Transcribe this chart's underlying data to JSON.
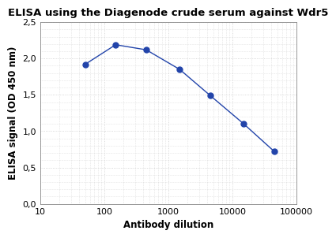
{
  "title": "ELISA using the Diagenode crude serum against Wdr5",
  "xlabel": "Antibody dilution",
  "ylabel": "ELISA signal (OD 450 nm)",
  "x": [
    50,
    150,
    450,
    1500,
    4500,
    15000,
    45000
  ],
  "y": [
    1.92,
    2.19,
    2.12,
    1.85,
    1.49,
    1.1,
    0.72
  ],
  "xlim": [
    10,
    100000
  ],
  "ylim": [
    0.0,
    2.5
  ],
  "yticks": [
    0.0,
    0.5,
    1.0,
    1.5,
    2.0,
    2.5
  ],
  "ytick_labels": [
    "0,0",
    "0,5",
    "1,0",
    "1,5",
    "2,0",
    "2,5"
  ],
  "xtick_labels": [
    "10",
    "100",
    "1000",
    "10000",
    "100000"
  ],
  "xtick_vals": [
    10,
    100,
    1000,
    10000,
    100000
  ],
  "line_color": "#2244aa",
  "marker": "o",
  "marker_size": 5,
  "bg_color": "#ffffff",
  "fig_bg_color": "#ffffff",
  "grid_color": "#cccccc",
  "title_fontsize": 9.5,
  "label_fontsize": 8.5,
  "tick_fontsize": 8
}
